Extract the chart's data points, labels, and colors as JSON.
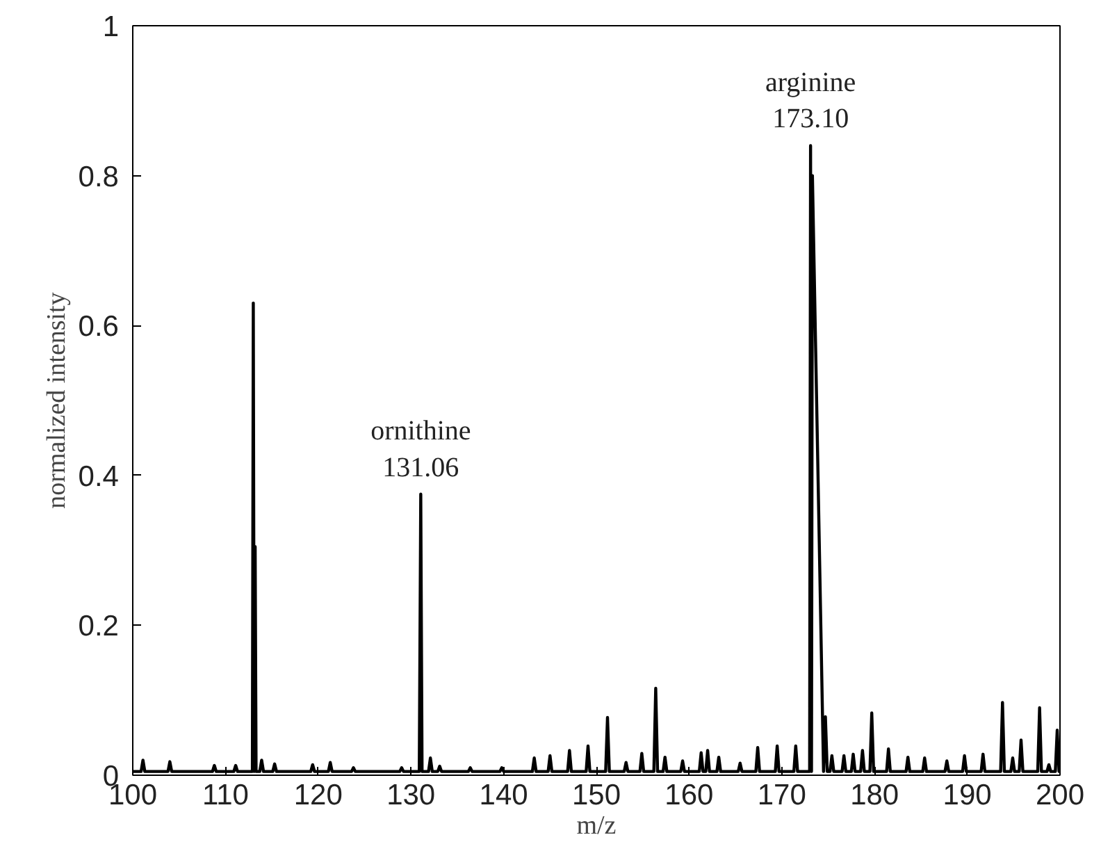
{
  "chart_data": {
    "type": "line",
    "xlabel": "m/z",
    "ylabel": "normalized intensity",
    "xlim": [
      100,
      200
    ],
    "ylim": [
      0,
      1
    ],
    "xticks": [
      100,
      110,
      120,
      130,
      140,
      150,
      160,
      170,
      180,
      190,
      200
    ],
    "yticks": [
      0,
      0.2,
      0.4,
      0.6,
      0.8,
      1
    ],
    "grid": false,
    "marker": "none",
    "line_style": "solid",
    "annotations": [
      {
        "text": "ornithine\n131.06",
        "x": 131.06,
        "y": 0.375
      },
      {
        "text": "arginine\n173.10",
        "x": 173.1,
        "y": 0.84
      }
    ],
    "series": [
      {
        "color": "#000000",
        "x": [
          100,
          100.9,
          101.1,
          101.3,
          103.8,
          104.0,
          104.2,
          108.6,
          108.8,
          109.0,
          110.9,
          111.1,
          111.3,
          112.9,
          113.0,
          113.1,
          113.2,
          113.3,
          113.7,
          113.9,
          114.1,
          115.1,
          115.3,
          115.5,
          119.2,
          119.4,
          119.6,
          121.1,
          121.3,
          121.5,
          123.6,
          123.8,
          124.0,
          128.8,
          129.0,
          129.2,
          130.9,
          131.06,
          131.2,
          131.9,
          132.1,
          132.3,
          132.9,
          133.1,
          133.3,
          136.2,
          136.4,
          136.6,
          139.6,
          139.8,
          140.0,
          143.1,
          143.3,
          143.5,
          144.8,
          145.0,
          145.2,
          146.9,
          147.1,
          147.3,
          148.9,
          149.1,
          149.3,
          151.0,
          151.2,
          151.4,
          153.0,
          153.2,
          153.4,
          154.7,
          154.9,
          155.1,
          156.2,
          156.4,
          156.6,
          157.2,
          157.4,
          157.6,
          159.1,
          159.3,
          159.5,
          161.1,
          161.3,
          161.5,
          161.8,
          162.0,
          162.2,
          163.0,
          163.2,
          163.4,
          165.3,
          165.5,
          165.7,
          167.2,
          167.4,
          167.6,
          169.3,
          169.5,
          169.7,
          171.3,
          171.5,
          171.7,
          173.0,
          173.1,
          173.2,
          173.3,
          174.5,
          174.7,
          174.9,
          175.2,
          175.4,
          175.6,
          176.5,
          176.7,
          176.9,
          177.5,
          177.7,
          177.9,
          178.5,
          178.7,
          178.9,
          179.5,
          179.7,
          179.9,
          181.3,
          181.5,
          181.7,
          183.4,
          183.6,
          183.8,
          185.2,
          185.4,
          185.6,
          187.6,
          187.8,
          188.0,
          189.5,
          189.7,
          189.9,
          191.5,
          191.7,
          191.9,
          193.6,
          193.8,
          194.0,
          194.7,
          194.9,
          195.1,
          195.6,
          195.8,
          196.0,
          197.6,
          197.8,
          198.0,
          198.6,
          198.8,
          199.0,
          199.5,
          199.7,
          199.9,
          200
        ],
        "values": [
          0.005,
          0.005,
          0.02,
          0.005,
          0.005,
          0.018,
          0.005,
          0.005,
          0.013,
          0.005,
          0.005,
          0.013,
          0.005,
          0.005,
          0.63,
          0.005,
          0.305,
          0.005,
          0.005,
          0.02,
          0.005,
          0.005,
          0.015,
          0.005,
          0.005,
          0.014,
          0.005,
          0.005,
          0.017,
          0.005,
          0.005,
          0.01,
          0.005,
          0.005,
          0.01,
          0.005,
          0.005,
          0.375,
          0.005,
          0.005,
          0.023,
          0.005,
          0.005,
          0.012,
          0.005,
          0.005,
          0.01,
          0.005,
          0.005,
          0.01,
          0.005,
          0.005,
          0.023,
          0.005,
          0.005,
          0.026,
          0.005,
          0.005,
          0.033,
          0.005,
          0.005,
          0.039,
          0.005,
          0.005,
          0.077,
          0.005,
          0.005,
          0.017,
          0.005,
          0.005,
          0.029,
          0.005,
          0.005,
          0.116,
          0.005,
          0.005,
          0.024,
          0.005,
          0.005,
          0.019,
          0.005,
          0.005,
          0.03,
          0.005,
          0.005,
          0.033,
          0.005,
          0.005,
          0.024,
          0.005,
          0.005,
          0.016,
          0.005,
          0.005,
          0.037,
          0.005,
          0.005,
          0.039,
          0.005,
          0.005,
          0.039,
          0.005,
          0.005,
          0.84,
          0.005,
          0.8,
          0.005,
          0.078,
          0.005,
          0.005,
          0.026,
          0.005,
          0.005,
          0.026,
          0.005,
          0.005,
          0.028,
          0.005,
          0.005,
          0.033,
          0.005,
          0.005,
          0.083,
          0.005,
          0.005,
          0.035,
          0.005,
          0.005,
          0.024,
          0.005,
          0.005,
          0.023,
          0.005,
          0.005,
          0.019,
          0.005,
          0.005,
          0.026,
          0.005,
          0.005,
          0.028,
          0.005,
          0.005,
          0.097,
          0.005,
          0.005,
          0.023,
          0.005,
          0.005,
          0.047,
          0.005,
          0.005,
          0.09,
          0.005,
          0.005,
          0.014,
          0.005,
          0.005,
          0.06,
          0.005,
          0.005
        ]
      }
    ]
  }
}
